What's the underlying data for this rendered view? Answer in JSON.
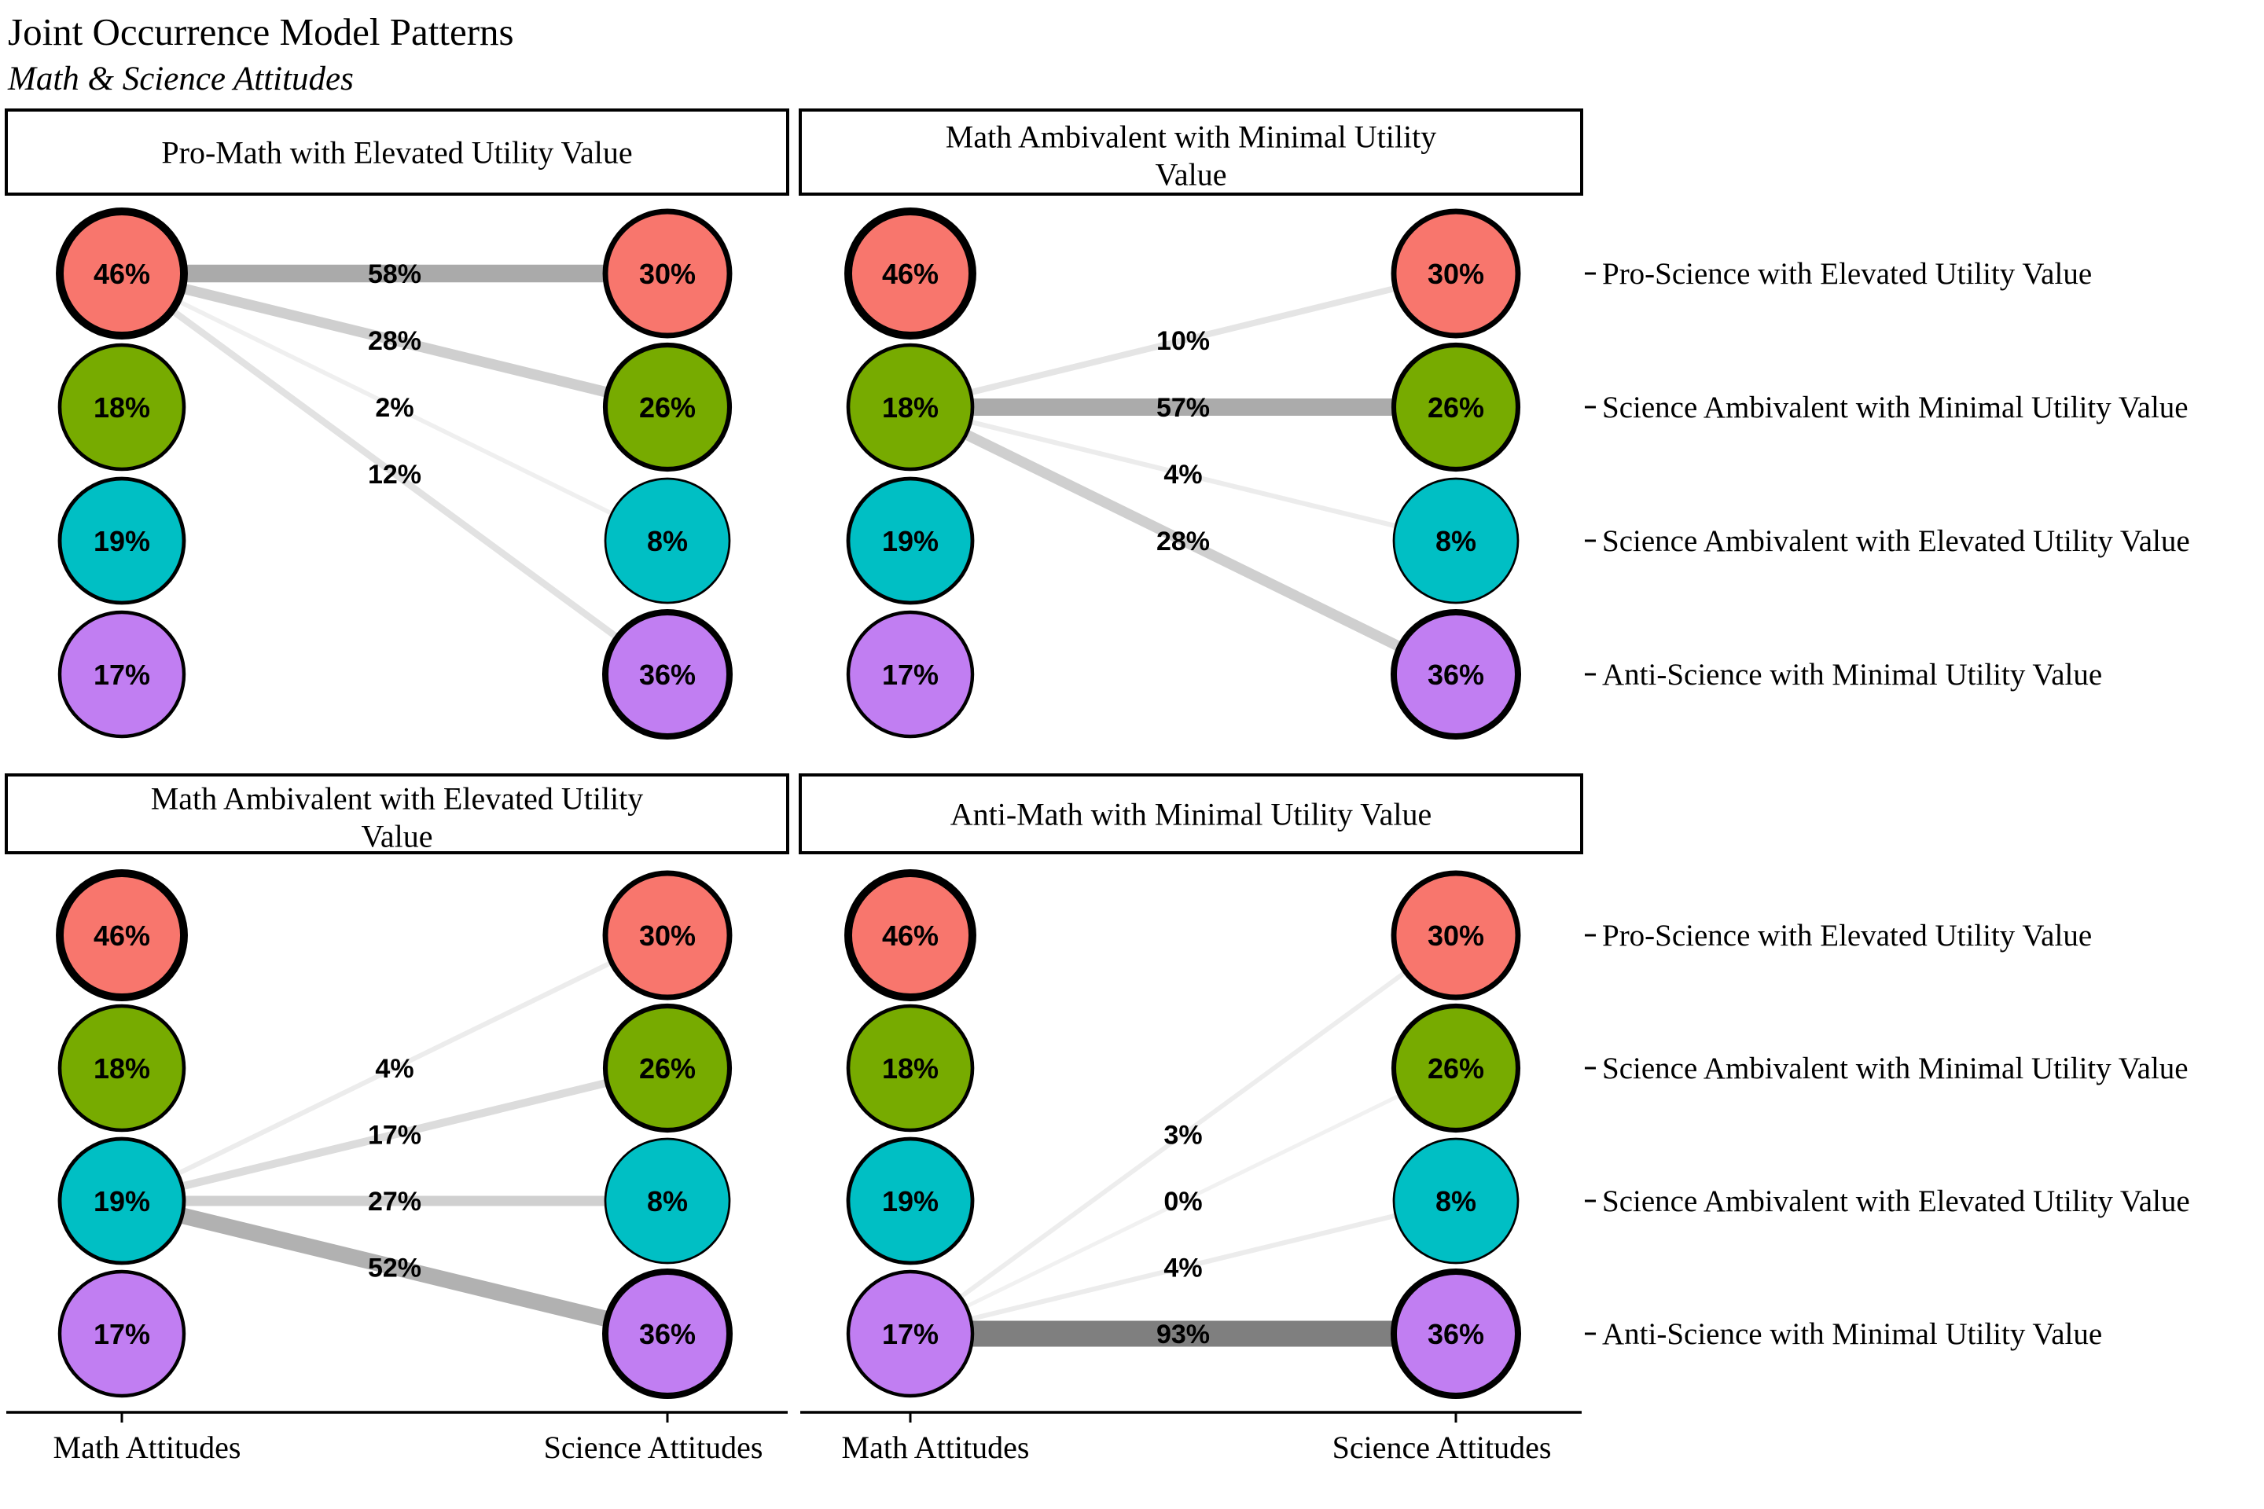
{
  "title": "Joint Occurrence Model Patterns",
  "subtitle": "Math & Science Attitudes",
  "chart_data": {
    "type": "bipartite-joint-occurrence-network",
    "title": "Joint Occurrence Model Patterns",
    "subtitle": "Math & Science Attitudes",
    "left_axis_label": "Math Attitudes",
    "right_axis_label": "Science Attitudes",
    "math_profiles": [
      {
        "name": "Pro-Math with Elevated Utility Value",
        "share_pct": 46,
        "share_label": "46%",
        "color": "#F8766D"
      },
      {
        "name": "Math Ambivalent with Minimal Utility Value",
        "share_pct": 18,
        "share_label": "18%",
        "color": "#77AB00"
      },
      {
        "name": "Math Ambivalent with Elevated Utility Value",
        "share_pct": 19,
        "share_label": "19%",
        "color": "#00BFC4"
      },
      {
        "name": "Anti-Math with Minimal Utility Value",
        "share_pct": 17,
        "share_label": "17%",
        "color": "#C17EF2"
      }
    ],
    "science_profiles": [
      {
        "name": "Pro-Science with Elevated Utility Value",
        "share_pct": 30,
        "share_label": "30%",
        "color": "#F8766D"
      },
      {
        "name": "Science Ambivalent with Minimal Utility Value",
        "share_pct": 26,
        "share_label": "26%",
        "color": "#77AB00"
      },
      {
        "name": "Science Ambivalent with Elevated Utility Value",
        "share_pct": 8,
        "share_label": "8%",
        "color": "#00BFC4"
      },
      {
        "name": "Anti-Science with Minimal Utility Value",
        "share_pct": 36,
        "share_label": "36%",
        "color": "#C17EF2"
      }
    ],
    "panels": [
      {
        "title_lines": [
          "Pro-Math with Elevated Utility Value"
        ],
        "source_math_index": 0,
        "grid": [
          0,
          0
        ],
        "transition_pct_to_science": [
          58,
          28,
          2,
          12
        ],
        "transition_labels": [
          "58%",
          "28%",
          "2%",
          "12%"
        ]
      },
      {
        "title_lines": [
          "Math Ambivalent with Minimal Utility",
          "Value"
        ],
        "source_math_index": 1,
        "grid": [
          1,
          0
        ],
        "transition_pct_to_science": [
          10,
          57,
          4,
          28
        ],
        "transition_labels": [
          "10%",
          "57%",
          "4%",
          "28%"
        ]
      },
      {
        "title_lines": [
          "Math Ambivalent with Elevated Utility",
          "Value"
        ],
        "source_math_index": 2,
        "grid": [
          0,
          1
        ],
        "transition_pct_to_science": [
          4,
          17,
          27,
          52
        ],
        "transition_labels": [
          "4%",
          "17%",
          "27%",
          "52%"
        ]
      },
      {
        "title_lines": [
          "Anti-Math with Minimal Utility Value"
        ],
        "source_math_index": 3,
        "grid": [
          1,
          1
        ],
        "transition_pct_to_science": [
          3,
          0,
          4,
          93
        ],
        "transition_labels": [
          "3%",
          "0%",
          "4%",
          "93%"
        ]
      }
    ],
    "legend_position": "right",
    "grid": "off"
  }
}
